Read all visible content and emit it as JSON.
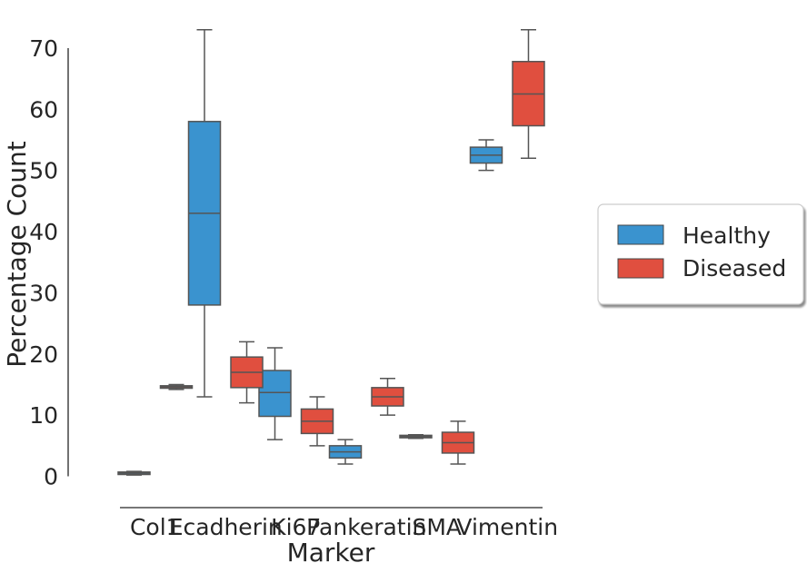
{
  "chart_data": {
    "type": "box",
    "title": "",
    "xlabel": "Marker",
    "ylabel": "Percentage Count",
    "ylim": [
      -2,
      74
    ],
    "yticks": [
      0,
      10,
      20,
      30,
      40,
      50,
      60,
      70
    ],
    "categories": [
      "Col1",
      "Ecadherin",
      "Ki67",
      "Pankeratin",
      "SMA",
      "Vimentin"
    ],
    "grid": false,
    "legend_position": "right",
    "series": [
      {
        "name": "Healthy",
        "color": "#3a93cf",
        "boxes": [
          {
            "category": "Col1",
            "whisker_low": 0.2,
            "q1": 0.3,
            "median": 0.5,
            "q3": 0.7,
            "whisker_high": 0.8
          },
          {
            "category": "Ecadherin",
            "whisker_low": 13,
            "q1": 28,
            "median": 43,
            "q3": 58,
            "whisker_high": 73
          },
          {
            "category": "Ki67",
            "whisker_low": 6,
            "q1": 9.8,
            "median": 13.7,
            "q3": 17.3,
            "whisker_high": 21
          },
          {
            "category": "Pankeratin",
            "whisker_low": 2,
            "q1": 3,
            "median": 4,
            "q3": 5,
            "whisker_high": 6
          },
          {
            "category": "SMA",
            "whisker_low": 6.2,
            "q1": 6.3,
            "median": 6.5,
            "q3": 6.7,
            "whisker_high": 6.8
          },
          {
            "category": "Vimentin",
            "whisker_low": 50,
            "q1": 51.2,
            "median": 52.5,
            "q3": 53.8,
            "whisker_high": 55
          }
        ]
      },
      {
        "name": "Diseased",
        "color": "#e04f3f",
        "boxes": [
          {
            "category": "Col1",
            "whisker_low": 14.2,
            "q1": 14.4,
            "median": 14.6,
            "q3": 14.8,
            "whisker_high": 15
          },
          {
            "category": "Ecadherin",
            "whisker_low": 12,
            "q1": 14.5,
            "median": 17,
            "q3": 19.5,
            "whisker_high": 22
          },
          {
            "category": "Ki67",
            "whisker_low": 5,
            "q1": 7,
            "median": 9,
            "q3": 11,
            "whisker_high": 13
          },
          {
            "category": "Pankeratin",
            "whisker_low": 10,
            "q1": 11.5,
            "median": 13,
            "q3": 14.5,
            "whisker_high": 16
          },
          {
            "category": "SMA",
            "whisker_low": 2,
            "q1": 3.8,
            "median": 5.5,
            "q3": 7.2,
            "whisker_high": 9
          },
          {
            "category": "Vimentin",
            "whisker_low": 52,
            "q1": 57.3,
            "median": 62.5,
            "q3": 67.8,
            "whisker_high": 73
          }
        ]
      }
    ]
  }
}
